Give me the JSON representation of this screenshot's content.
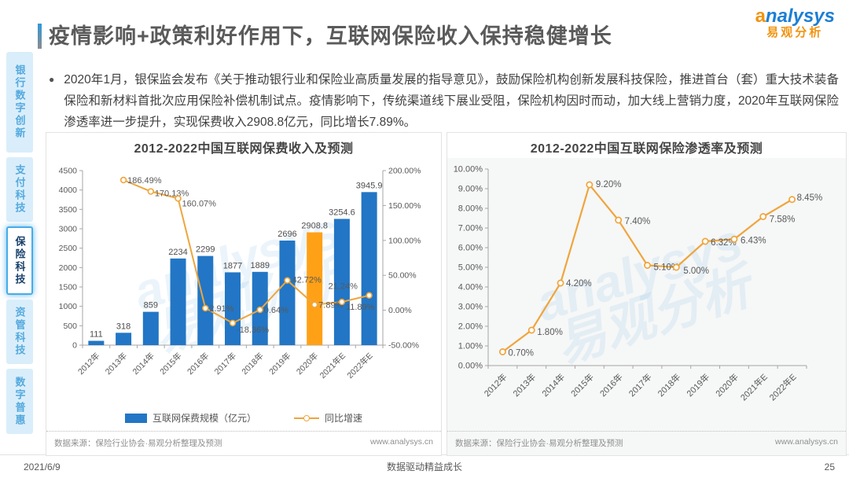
{
  "header": {
    "title": "疫情影响+政策利好作用下，互联网保险收入保持稳健增长",
    "logo": {
      "brand": "analysys",
      "brand_cn": "易观分析"
    }
  },
  "sidebar": {
    "items": [
      {
        "label": "银行数字创新",
        "active": false
      },
      {
        "label": "支付科技",
        "active": false
      },
      {
        "label": "保险科技",
        "active": true
      },
      {
        "label": "资管科技",
        "active": false
      },
      {
        "label": "数字普惠",
        "active": false
      }
    ]
  },
  "bullet": {
    "text": "2020年1月，银保监会发布《关于推动银行业和保险业高质量发展的指导意见》，鼓励保险机构创新发展科技保险，推进首台（套）重大技术装备保险和新材料首批次应用保险补偿机制试点。疫情影响下，传统渠道线下展业受阻，保险机构因时而动，加大线上营销力度，2020年互联网保险渗透率进一步提升，实现保费收入2908.8亿元，同比增长7.89%。"
  },
  "chart_data": [
    {
      "type": "bar",
      "title": "2012-2022中国互联网保费收入及预测",
      "categories": [
        "2012年",
        "2013年",
        "2014年",
        "2015年",
        "2016年",
        "2017年",
        "2018年",
        "2019年",
        "2020年",
        "2021年E",
        "2022年E"
      ],
      "series": [
        {
          "name": "互联网保费规模（亿元）",
          "chart": "bar",
          "values": [
            111,
            318,
            859,
            2234,
            2299,
            1877,
            1889,
            2696,
            2908.8,
            3254.6,
            3945.9
          ],
          "labels": [
            "111",
            "318",
            "859",
            "2234",
            "2299",
            "1877",
            "1889",
            "2696",
            "2908.8",
            "3254.6",
            "3945.9"
          ],
          "color": "#2276c5",
          "highlight_index": 8,
          "highlight_color": "#ffa117"
        },
        {
          "name": "同比增速",
          "chart": "line",
          "axis": "right",
          "values": [
            null,
            186.49,
            170.13,
            160.07,
            2.91,
            -18.36,
            0.64,
            42.72,
            7.89,
            11.89,
            21.24
          ],
          "labels": [
            null,
            "186.49%",
            "170.13%",
            "160.07%",
            "2.91%",
            "-18.36%",
            "0.64%",
            "42.72%",
            "7.89%",
            "11.89%",
            "21.24%"
          ],
          "color": "#efa53c"
        }
      ],
      "left_axis": {
        "min": 0,
        "max": 4500,
        "step": 500
      },
      "right_axis": {
        "min": -50,
        "max": 200,
        "step": 50,
        "format": "percent"
      },
      "legend_position": "bottom",
      "grid": false,
      "source": "数据来源：保险行业协会·易观分析整理及预测",
      "site": "www.analysys.cn"
    },
    {
      "type": "line",
      "title": "2012-2022中国互联网保险渗透率及预测",
      "categories": [
        "2012年",
        "2013年",
        "2014年",
        "2015年",
        "2016年",
        "2017年",
        "2018年",
        "2019年",
        "2020年",
        "2021年E",
        "2022年E"
      ],
      "values": [
        0.7,
        1.8,
        4.2,
        9.2,
        7.4,
        5.1,
        5.0,
        6.32,
        6.43,
        7.58,
        8.45
      ],
      "labels": [
        "0.70%",
        "1.80%",
        "4.20%",
        "9.20%",
        "7.40%",
        "5.10%",
        "5.00%",
        "6.32%",
        "6.43%",
        "7.58%",
        "8.45%"
      ],
      "ylabel": "",
      "xlabel": "",
      "ylim": [
        0,
        10
      ],
      "ystep": 1,
      "color": "#efa53c",
      "grid": false,
      "source": "数据来源：保险行业协会·易观分析整理及预测",
      "site": "www.analysys.cn"
    }
  ],
  "watermark": {
    "line1": "analysys",
    "line2": "易观分析"
  },
  "footer": {
    "date": "2021/6/9",
    "center": "数据驱动精益成长",
    "page": "25"
  }
}
